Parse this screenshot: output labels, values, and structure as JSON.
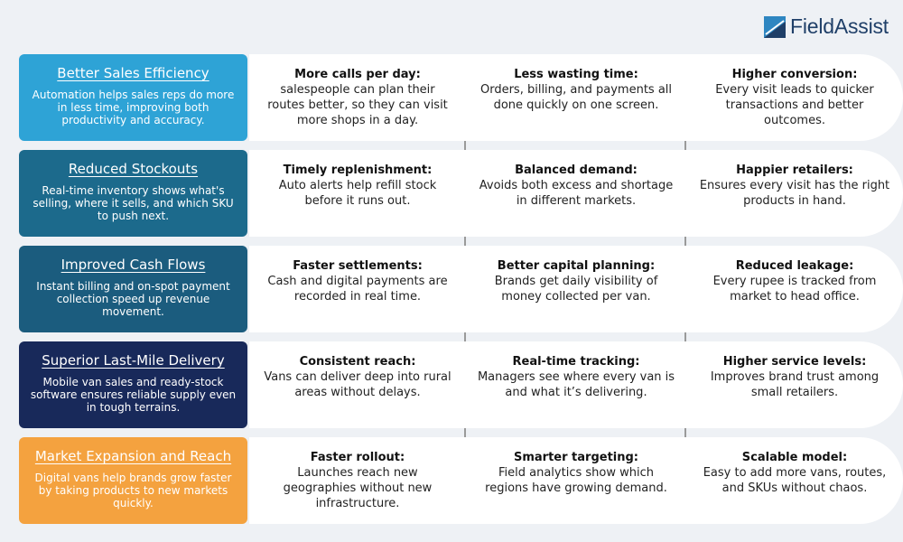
{
  "brand": {
    "name": "FieldAssist",
    "color": "#1f3f68",
    "accent": "#2e86c1"
  },
  "rows": [
    {
      "title": "Better Sales Efficiency",
      "description": "Automation helps sales reps do more in less time, improving both productivity and accuracy.",
      "color": "#2ea3d6",
      "cells": [
        {
          "title": "More calls per day:",
          "text": "salespeople can plan their routes better, so they can visit more shops in a day."
        },
        {
          "title": "Less wasting time:",
          "text": "Orders, billing, and payments all done quickly on one screen."
        },
        {
          "title": "Higher conversion:",
          "text": "Every visit leads to quicker transactions and better outcomes."
        }
      ]
    },
    {
      "title": "Reduced Stockouts",
      "description": "Real-time inventory shows what's selling, where it sells, and which SKU to push next.",
      "color": "#1c6a8c",
      "cells": [
        {
          "title": "Timely replenishment:",
          "text": "Auto alerts help refill stock before it runs out."
        },
        {
          "title": "Balanced demand:",
          "text": "Avoids both excess and shortage in different markets."
        },
        {
          "title": "Happier retailers:",
          "text": "Ensures every visit has the right products in hand."
        }
      ]
    },
    {
      "title": "Improved Cash Flows",
      "description": "Instant billing and on-spot payment collection speed up revenue movement.",
      "color": "#1b5c7e",
      "cells": [
        {
          "title": "Faster settlements:",
          "text": "Cash and digital payments are recorded in real time."
        },
        {
          "title": "Better capital planning:",
          "text": "Brands get daily visibility of money collected per van."
        },
        {
          "title": "Reduced leakage:",
          "text": "Every rupee is tracked from market to head office."
        }
      ]
    },
    {
      "title": "Superior Last-Mile Delivery",
      "description": "Mobile van sales and ready-stock software ensures reliable supply even in tough terrains.",
      "color": "#18295a",
      "cells": [
        {
          "title": "Consistent reach:",
          "text": "Vans can deliver deep into rural areas without delays."
        },
        {
          "title": "Real-time tracking:",
          "text": "Managers see where every van is and what it’s delivering."
        },
        {
          "title": "Higher service levels:",
          "text": "Improves brand trust among small retailers."
        }
      ]
    },
    {
      "title": "Market Expansion and Reach",
      "description": "Digital vans help brands grow faster by taking products to new markets quickly.",
      "color": "#f4a23f",
      "cells": [
        {
          "title": "Faster rollout:",
          "text": "Launches reach new geographies without new infrastructure."
        },
        {
          "title": "Smarter targeting:",
          "text": "Field analytics show which regions have growing demand."
        },
        {
          "title": "Scalable model:",
          "text": "Easy to add more vans, routes, and SKUs without chaos."
        }
      ]
    }
  ]
}
